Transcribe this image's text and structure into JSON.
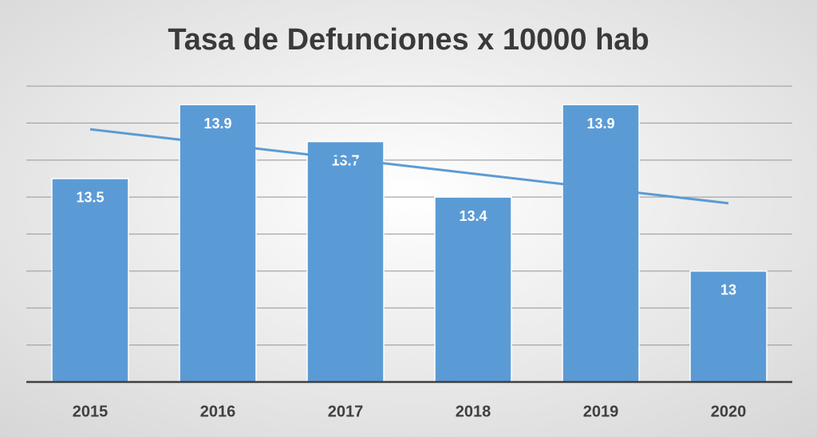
{
  "chart_data": {
    "type": "bar",
    "title": "Tasa de Defunciones x 10000 hab",
    "categories": [
      "2015",
      "2016",
      "2017",
      "2018",
      "2019",
      "2020"
    ],
    "values": [
      13.5,
      13.9,
      13.7,
      13.4,
      13.9,
      13
    ],
    "color": "#5b9bd5",
    "ylim": [
      12.4,
      14.0
    ],
    "yticks": [
      12.4,
      12.6,
      12.8,
      13.0,
      13.2,
      13.4,
      13.6,
      13.8,
      14.0
    ],
    "grid": true,
    "trendline": "linear",
    "trendline_color": "#5b9bd5"
  }
}
